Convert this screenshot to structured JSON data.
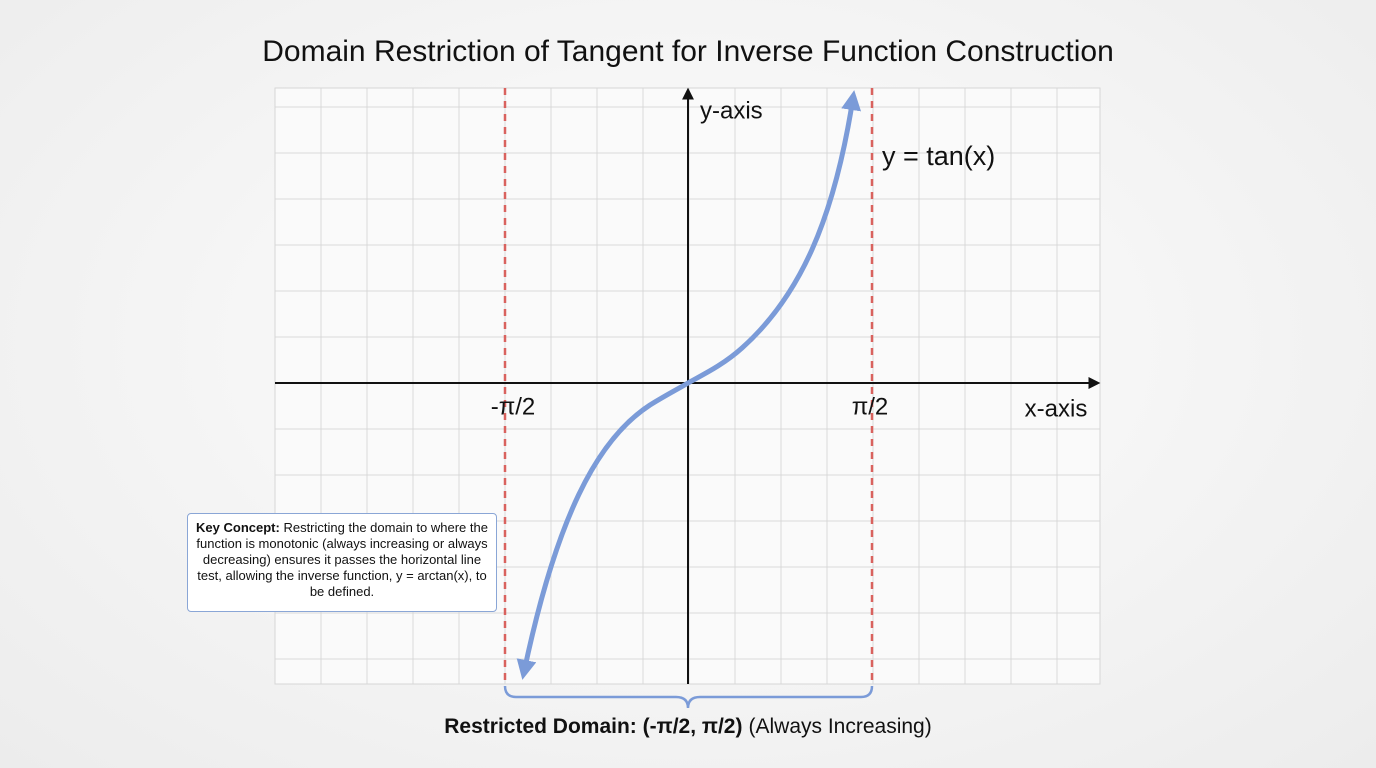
{
  "title": "Domain Restriction of Tangent for Inverse Function Construction",
  "axes": {
    "x_label": "x-axis",
    "y_label": "y-axis"
  },
  "asymptotes": {
    "left": "-π/2",
    "right": "π/2"
  },
  "curve_label": "y = tan(x)",
  "callout": {
    "heading": "Key Concept:",
    "text": "Restricting the domain to where the function is monotonic (always increasing or always decreasing) ensures it passes the horizontal line test, allowing the inverse function, y = arctan(x), to be defined."
  },
  "footer": {
    "domain": "Restricted Domain: (-π/2, π/2)",
    "note": "(Always Increasing)"
  }
}
